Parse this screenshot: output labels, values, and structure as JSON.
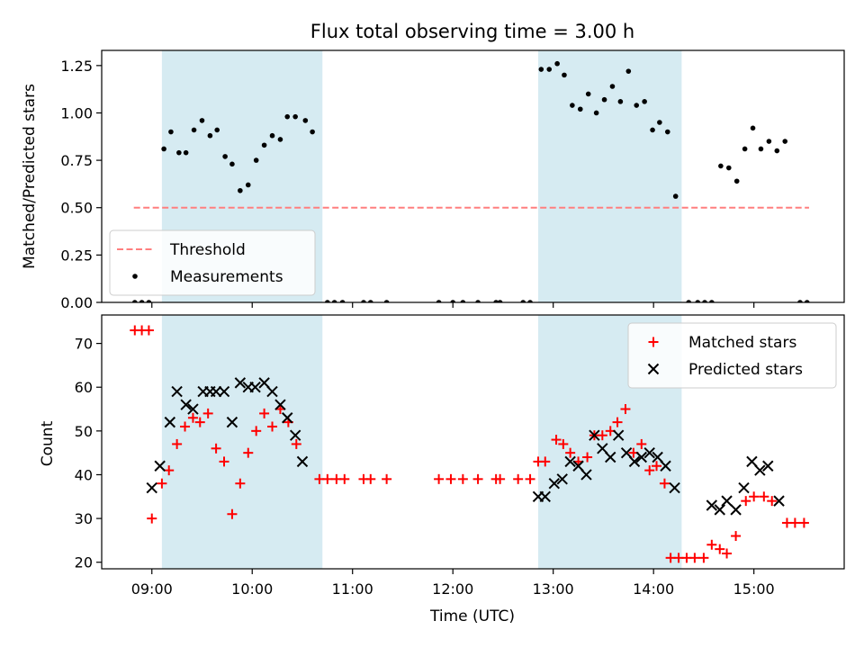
{
  "chart_data": [
    {
      "type": "scatter",
      "title": "Flux total observing time = 3.00 h",
      "xlabel": "",
      "ylabel": "Matched/Predicted stars",
      "xlim": [
        8.5,
        15.9
      ],
      "ylim": [
        0.0,
        1.33
      ],
      "yticks": [
        0.0,
        0.25,
        0.5,
        0.75,
        1.0,
        1.25
      ],
      "ytick_labels": [
        "0.00",
        "0.25",
        "0.50",
        "0.75",
        "1.00",
        "1.25"
      ],
      "grid": false,
      "legend_position": "lower-left",
      "shaded_intervals": [
        [
          9.1,
          10.7
        ],
        [
          12.85,
          14.28
        ]
      ],
      "threshold": {
        "name": "Threshold",
        "value": 0.5,
        "x_range": [
          8.82,
          15.55
        ],
        "color": "#ff7f7f",
        "style": "dashed"
      },
      "series": [
        {
          "name": "Measurements",
          "marker": "dot",
          "color": "#000000",
          "points": [
            [
              8.83,
              0.0
            ],
            [
              8.9,
              0.0
            ],
            [
              8.97,
              0.0
            ],
            [
              9.12,
              0.81
            ],
            [
              9.19,
              0.9
            ],
            [
              9.27,
              0.79
            ],
            [
              9.34,
              0.79
            ],
            [
              9.42,
              0.91
            ],
            [
              9.5,
              0.96
            ],
            [
              9.58,
              0.88
            ],
            [
              9.65,
              0.91
            ],
            [
              9.73,
              0.77
            ],
            [
              9.8,
              0.73
            ],
            [
              9.88,
              0.59
            ],
            [
              9.96,
              0.62
            ],
            [
              10.04,
              0.75
            ],
            [
              10.12,
              0.83
            ],
            [
              10.2,
              0.88
            ],
            [
              10.28,
              0.86
            ],
            [
              10.35,
              0.98
            ],
            [
              10.43,
              0.98
            ],
            [
              10.53,
              0.96
            ],
            [
              10.6,
              0.9
            ],
            [
              10.75,
              0.0
            ],
            [
              10.82,
              0.0
            ],
            [
              10.9,
              0.0
            ],
            [
              11.11,
              0.0
            ],
            [
              11.18,
              0.0
            ],
            [
              11.34,
              0.0
            ],
            [
              11.86,
              0.0
            ],
            [
              12.0,
              0.0
            ],
            [
              12.1,
              0.0
            ],
            [
              12.25,
              0.0
            ],
            [
              12.43,
              0.0
            ],
            [
              12.47,
              0.0
            ],
            [
              12.7,
              0.0
            ],
            [
              12.77,
              0.0
            ],
            [
              12.88,
              1.23
            ],
            [
              12.96,
              1.23
            ],
            [
              13.04,
              1.26
            ],
            [
              13.11,
              1.2
            ],
            [
              13.19,
              1.04
            ],
            [
              13.27,
              1.02
            ],
            [
              13.35,
              1.1
            ],
            [
              13.43,
              1.0
            ],
            [
              13.51,
              1.07
            ],
            [
              13.59,
              1.14
            ],
            [
              13.67,
              1.06
            ],
            [
              13.75,
              1.22
            ],
            [
              13.83,
              1.04
            ],
            [
              13.91,
              1.06
            ],
            [
              13.99,
              0.91
            ],
            [
              14.06,
              0.95
            ],
            [
              14.14,
              0.9
            ],
            [
              14.22,
              0.56
            ],
            [
              14.35,
              0.0
            ],
            [
              14.44,
              0.0
            ],
            [
              14.51,
              0.0
            ],
            [
              14.58,
              0.0
            ],
            [
              14.67,
              0.72
            ],
            [
              14.75,
              0.71
            ],
            [
              14.83,
              0.64
            ],
            [
              14.91,
              0.81
            ],
            [
              14.99,
              0.92
            ],
            [
              15.07,
              0.81
            ],
            [
              15.15,
              0.85
            ],
            [
              15.23,
              0.8
            ],
            [
              15.31,
              0.85
            ],
            [
              15.46,
              0.0
            ],
            [
              15.53,
              0.0
            ]
          ]
        }
      ]
    },
    {
      "type": "scatter",
      "title": "",
      "xlabel": "Time (UTC)",
      "ylabel": "Count",
      "xlim": [
        8.5,
        15.9
      ],
      "ylim": [
        18.5,
        76.5
      ],
      "yticks": [
        20,
        30,
        40,
        50,
        60,
        70
      ],
      "xticks": [
        9,
        10,
        11,
        12,
        13,
        14,
        15
      ],
      "xtick_labels": [
        "09:00",
        "10:00",
        "11:00",
        "12:00",
        "13:00",
        "14:00",
        "15:00"
      ],
      "grid": false,
      "legend_position": "upper-right",
      "shaded_intervals": [
        [
          9.1,
          10.7
        ],
        [
          12.85,
          14.28
        ]
      ],
      "series": [
        {
          "name": "Matched stars",
          "marker": "plus",
          "color": "#ff0000",
          "points": [
            [
              8.83,
              73
            ],
            [
              8.9,
              73
            ],
            [
              8.97,
              73
            ],
            [
              9.0,
              30
            ],
            [
              9.1,
              38
            ],
            [
              9.17,
              41
            ],
            [
              9.25,
              47
            ],
            [
              9.33,
              51
            ],
            [
              9.41,
              53
            ],
            [
              9.48,
              52
            ],
            [
              9.56,
              54
            ],
            [
              9.64,
              46
            ],
            [
              9.72,
              43
            ],
            [
              9.8,
              31
            ],
            [
              9.88,
              38
            ],
            [
              9.96,
              45
            ],
            [
              10.04,
              50
            ],
            [
              10.12,
              54
            ],
            [
              10.2,
              51
            ],
            [
              10.28,
              55
            ],
            [
              10.36,
              52
            ],
            [
              10.44,
              47
            ],
            [
              10.67,
              39
            ],
            [
              10.75,
              39
            ],
            [
              10.84,
              39
            ],
            [
              10.92,
              39
            ],
            [
              11.11,
              39
            ],
            [
              11.18,
              39
            ],
            [
              11.34,
              39
            ],
            [
              11.86,
              39
            ],
            [
              11.98,
              39
            ],
            [
              12.1,
              39
            ],
            [
              12.25,
              39
            ],
            [
              12.43,
              39
            ],
            [
              12.47,
              39
            ],
            [
              12.65,
              39
            ],
            [
              12.77,
              39
            ],
            [
              12.85,
              43
            ],
            [
              12.92,
              43
            ],
            [
              13.03,
              48
            ],
            [
              13.1,
              47
            ],
            [
              13.17,
              45
            ],
            [
              13.25,
              43
            ],
            [
              13.34,
              44
            ],
            [
              13.41,
              49
            ],
            [
              13.49,
              49
            ],
            [
              13.57,
              50
            ],
            [
              13.64,
              52
            ],
            [
              13.72,
              55
            ],
            [
              13.8,
              45
            ],
            [
              13.88,
              47
            ],
            [
              13.96,
              41
            ],
            [
              14.03,
              42
            ],
            [
              14.11,
              38
            ],
            [
              14.17,
              21
            ],
            [
              14.25,
              21
            ],
            [
              14.33,
              21
            ],
            [
              14.41,
              21
            ],
            [
              14.5,
              21
            ],
            [
              14.58,
              24
            ],
            [
              14.66,
              23
            ],
            [
              14.73,
              22
            ],
            [
              14.82,
              26
            ],
            [
              14.92,
              34
            ],
            [
              15.0,
              35
            ],
            [
              15.1,
              35
            ],
            [
              15.18,
              34
            ],
            [
              15.33,
              29
            ],
            [
              15.41,
              29
            ],
            [
              15.5,
              29
            ]
          ]
        },
        {
          "name": "Predicted stars",
          "marker": "x",
          "color": "#000000",
          "points": [
            [
              9.0,
              37
            ],
            [
              9.08,
              42
            ],
            [
              9.18,
              52
            ],
            [
              9.25,
              59
            ],
            [
              9.34,
              56
            ],
            [
              9.41,
              55
            ],
            [
              9.51,
              59
            ],
            [
              9.58,
              59
            ],
            [
              9.64,
              59
            ],
            [
              9.72,
              59
            ],
            [
              9.8,
              52
            ],
            [
              9.88,
              61
            ],
            [
              9.96,
              60
            ],
            [
              10.03,
              60
            ],
            [
              10.12,
              61
            ],
            [
              10.2,
              59
            ],
            [
              10.28,
              56
            ],
            [
              10.35,
              53
            ],
            [
              10.43,
              49
            ],
            [
              10.5,
              43
            ],
            [
              12.85,
              35
            ],
            [
              12.92,
              35
            ],
            [
              13.01,
              38
            ],
            [
              13.09,
              39
            ],
            [
              13.17,
              43
            ],
            [
              13.25,
              42
            ],
            [
              13.33,
              40
            ],
            [
              13.41,
              49
            ],
            [
              13.49,
              46
            ],
            [
              13.57,
              44
            ],
            [
              13.65,
              49
            ],
            [
              13.73,
              45
            ],
            [
              13.81,
              43
            ],
            [
              13.88,
              44
            ],
            [
              13.96,
              45
            ],
            [
              14.04,
              44
            ],
            [
              14.12,
              42
            ],
            [
              14.21,
              37
            ],
            [
              14.58,
              33
            ],
            [
              14.66,
              32
            ],
            [
              14.73,
              34
            ],
            [
              14.82,
              32
            ],
            [
              14.9,
              37
            ],
            [
              14.98,
              43
            ],
            [
              15.06,
              41
            ],
            [
              15.14,
              42
            ],
            [
              15.25,
              34
            ]
          ]
        }
      ]
    }
  ]
}
